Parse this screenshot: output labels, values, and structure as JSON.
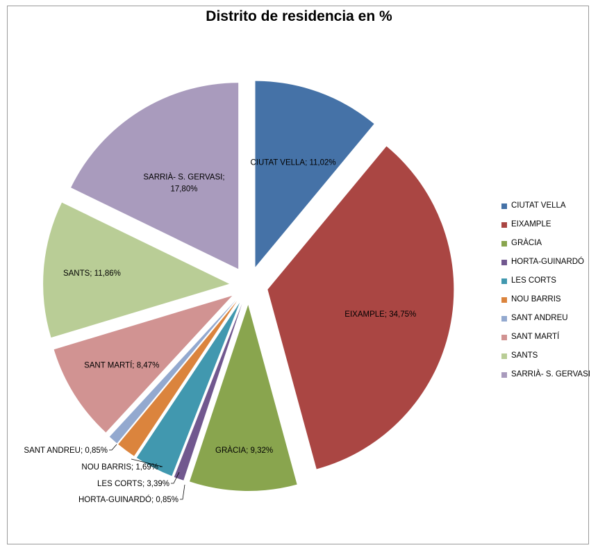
{
  "chart_data": {
    "type": "pie",
    "title": "Distrito de residencia en %",
    "legend_position": "right",
    "slices": [
      {
        "name": "CIUTAT VELLA",
        "value": 11.02,
        "label": "CIUTAT VELLA; 11,02%",
        "color": "#4572A7"
      },
      {
        "name": "EIXAMPLE",
        "value": 34.75,
        "label": "EIXAMPLE; 34,75%",
        "color": "#AA4643"
      },
      {
        "name": "GRÀCIA",
        "value": 9.32,
        "label": "GRÀCIA; 9,32%",
        "color": "#89A54E"
      },
      {
        "name": "HORTA-GUINARDÓ",
        "value": 0.85,
        "label": "HORTA-GUINARDÓ; 0,85%",
        "color": "#71588F"
      },
      {
        "name": "LES CORTS",
        "value": 3.39,
        "label": "LES CORTS; 3,39%",
        "color": "#4198AF"
      },
      {
        "name": "NOU BARRIS",
        "value": 1.69,
        "label": "NOU BARRIS; 1,69%",
        "color": "#DB843D"
      },
      {
        "name": "SANT ANDREU",
        "value": 0.85,
        "label": "SANT ANDREU; 0,85%",
        "color": "#93A9CF"
      },
      {
        "name": "SANT MARTÍ",
        "value": 8.47,
        "label": "SANT MARTÍ; 8,47%",
        "color": "#D19392"
      },
      {
        "name": "SANTS",
        "value": 11.86,
        "label": "SANTS; 11,86%",
        "color": "#B9CD96"
      },
      {
        "name": "SARRIÀ- S. GERVASI",
        "value": 17.8,
        "label": "SARRIÀ- S. GERVASI; 17,80%",
        "color": "#A99BBD"
      }
    ]
  }
}
